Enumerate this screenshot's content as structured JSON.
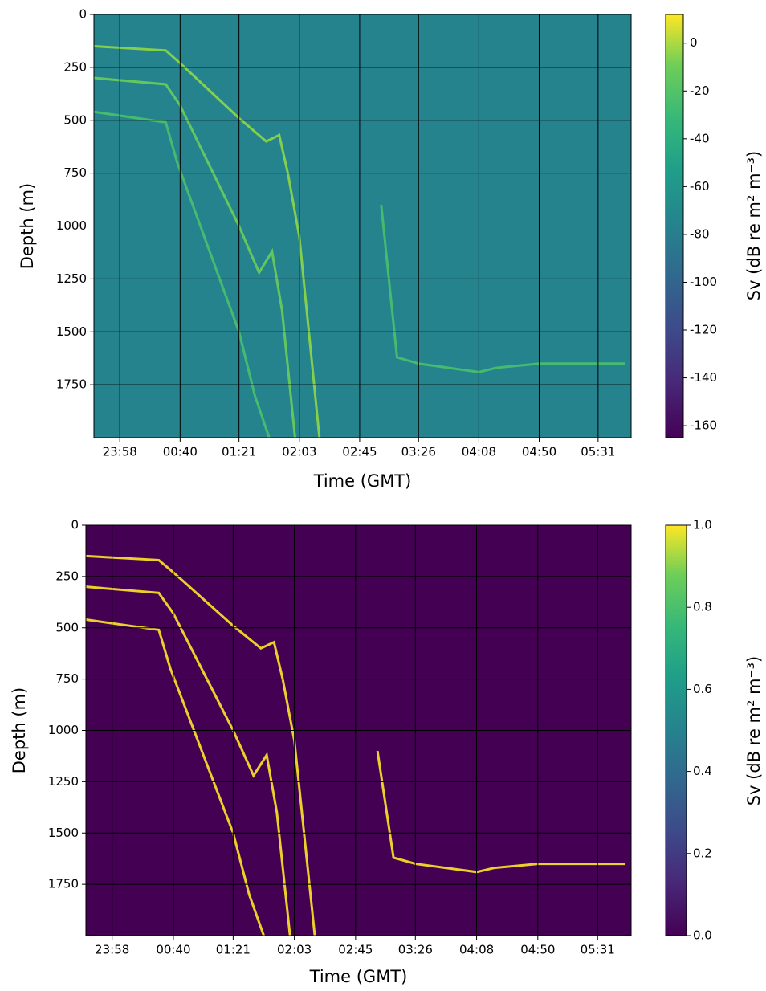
{
  "chart_data": [
    {
      "type": "heatmap",
      "xlabel": "Time (GMT)",
      "ylabel": "Depth (m)",
      "colorbar_label": "Sv (dB re m² m⁻³)",
      "xlim": [
        -20,
        354
      ],
      "ylim": [
        2000,
        0
      ],
      "xticks": [
        {
          "value": -2,
          "label": "23:58"
        },
        {
          "value": 40,
          "label": "00:40"
        },
        {
          "value": 81,
          "label": "01:21"
        },
        {
          "value": 123,
          "label": "02:03"
        },
        {
          "value": 165,
          "label": "02:45"
        },
        {
          "value": 206,
          "label": "03:26"
        },
        {
          "value": 248,
          "label": "04:08"
        },
        {
          "value": 290,
          "label": "04:50"
        },
        {
          "value": 331,
          "label": "05:31"
        }
      ],
      "yticks": [
        0,
        250,
        500,
        750,
        1000,
        1250,
        1500,
        1750
      ],
      "clim": [
        -165,
        12
      ],
      "cticks": [
        0,
        -20,
        -40,
        -60,
        -80,
        -100,
        -120,
        -140,
        -160
      ],
      "background": "#25838e",
      "grid": true,
      "series": [
        {
          "color": "#8fd744",
          "x": [
            -20,
            30,
            40,
            81,
            100,
            109,
            115,
            123,
            137
          ],
          "values": [
            150,
            170,
            230,
            490,
            600,
            570,
            750,
            1050,
            2000
          ]
        },
        {
          "color": "#6ccd5a",
          "x": [
            -20,
            30,
            40,
            81,
            95,
            104,
            111,
            120
          ],
          "values": [
            300,
            330,
            430,
            1000,
            1220,
            1120,
            1400,
            2000
          ]
        },
        {
          "color": "#4ac16d",
          "x": [
            -20,
            30,
            38,
            81,
            92,
            102
          ],
          "values": [
            460,
            510,
            700,
            1500,
            1800,
            2000
          ]
        },
        {
          "color": "#4ac16d",
          "x": [
            180,
            191,
            206,
            248,
            260,
            290,
            350
          ],
          "values": [
            900,
            1620,
            1650,
            1690,
            1670,
            1650,
            1650
          ]
        }
      ]
    },
    {
      "type": "heatmap",
      "xlabel": "Time (GMT)",
      "ylabel": "Depth (m)",
      "colorbar_label": "Sv (dB re m² m⁻³)",
      "xlim": [
        -20,
        354
      ],
      "ylim": [
        2000,
        0
      ],
      "xticks": [
        {
          "value": -2,
          "label": "23:58"
        },
        {
          "value": 40,
          "label": "00:40"
        },
        {
          "value": 81,
          "label": "01:21"
        },
        {
          "value": 123,
          "label": "02:03"
        },
        {
          "value": 165,
          "label": "02:45"
        },
        {
          "value": 206,
          "label": "03:26"
        },
        {
          "value": 248,
          "label": "04:08"
        },
        {
          "value": 290,
          "label": "04:50"
        },
        {
          "value": 331,
          "label": "05:31"
        }
      ],
      "yticks": [
        0,
        250,
        500,
        750,
        1000,
        1250,
        1500,
        1750
      ],
      "clim": [
        0,
        1
      ],
      "cticks": [
        {
          "value": 0,
          "label": "0.0"
        },
        0.2,
        0.4,
        0.6,
        0.8,
        {
          "value": 1,
          "label": "1.0"
        }
      ],
      "background": "#440154",
      "grid": true,
      "series": [
        {
          "color": "#fde725",
          "x": [
            -20,
            30,
            40,
            81,
            100,
            109,
            115,
            123,
            137
          ],
          "values": [
            150,
            170,
            230,
            490,
            600,
            570,
            750,
            1050,
            2000
          ]
        },
        {
          "color": "#fde725",
          "x": [
            -20,
            30,
            40,
            81,
            95,
            104,
            111,
            120
          ],
          "values": [
            300,
            330,
            430,
            1000,
            1220,
            1120,
            1400,
            2000
          ]
        },
        {
          "color": "#fde725",
          "x": [
            -20,
            30,
            38,
            81,
            92,
            102
          ],
          "values": [
            460,
            510,
            700,
            1500,
            1800,
            2000
          ]
        },
        {
          "color": "#fde725",
          "x": [
            180,
            191,
            206,
            248,
            260,
            290,
            350
          ],
          "values": [
            1100,
            1620,
            1650,
            1690,
            1670,
            1650,
            1650
          ]
        }
      ]
    }
  ]
}
